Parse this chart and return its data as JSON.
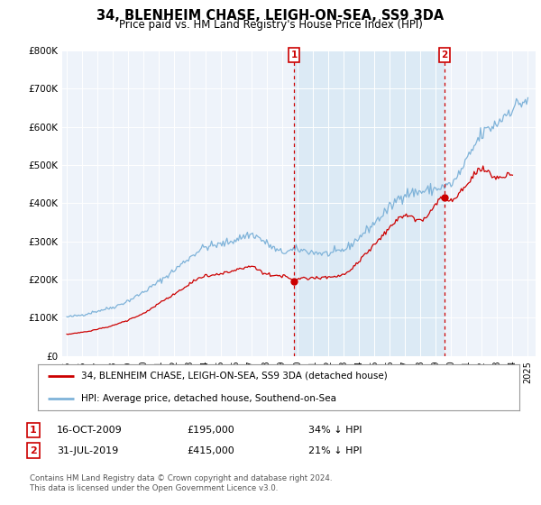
{
  "title": "34, BLENHEIM CHASE, LEIGH-ON-SEA, SS9 3DA",
  "subtitle": "Price paid vs. HM Land Registry's House Price Index (HPI)",
  "ylim": [
    0,
    800000
  ],
  "yticks": [
    0,
    100000,
    200000,
    300000,
    400000,
    500000,
    600000,
    700000,
    800000
  ],
  "ytick_labels": [
    "£0",
    "£100K",
    "£200K",
    "£300K",
    "£400K",
    "£500K",
    "£600K",
    "£700K",
    "£800K"
  ],
  "hpi_color": "#7fb3d9",
  "price_color": "#cc0000",
  "vline_color": "#cc0000",
  "shade_color": "#dceaf5",
  "annotation_box_color": "#cc0000",
  "legend_label_price": "34, BLENHEIM CHASE, LEIGH-ON-SEA, SS9 3DA (detached house)",
  "legend_label_hpi": "HPI: Average price, detached house, Southend-on-Sea",
  "transaction1_date": "16-OCT-2009",
  "transaction1_price": "£195,000",
  "transaction1_note": "34% ↓ HPI",
  "transaction2_date": "31-JUL-2019",
  "transaction2_price": "£415,000",
  "transaction2_note": "21% ↓ HPI",
  "footer": "Contains HM Land Registry data © Crown copyright and database right 2024.\nThis data is licensed under the Open Government Licence v3.0.",
  "background_color": "#ffffff",
  "plot_bg_color": "#eef3fa",
  "vline1_x": 2009.79,
  "vline2_x": 2019.58,
  "transaction1_y": 195000,
  "transaction2_y": 415000,
  "xlim_left": 1994.7,
  "xlim_right": 2025.5,
  "xtick_years": [
    1995,
    1996,
    1997,
    1998,
    1999,
    2000,
    2001,
    2002,
    2003,
    2004,
    2005,
    2006,
    2007,
    2008,
    2009,
    2010,
    2011,
    2012,
    2013,
    2014,
    2015,
    2016,
    2017,
    2018,
    2019,
    2020,
    2021,
    2022,
    2023,
    2024,
    2025
  ]
}
